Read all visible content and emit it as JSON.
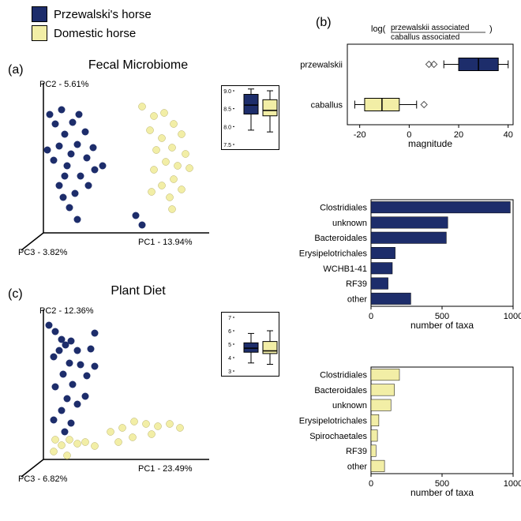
{
  "colors": {
    "przewalski": "#1d2d6b",
    "domestic": "#f2eea6",
    "stroke": "#000000",
    "bg": "#ffffff"
  },
  "legend": {
    "items": [
      {
        "label": "Przewalski's horse",
        "color": "#1d2d6b"
      },
      {
        "label": "Domestic horse",
        "color": "#f2eea6"
      }
    ]
  },
  "panels": {
    "a_label": "(a)",
    "b_label": "(b)",
    "c_label": "(c)"
  },
  "scatter_a": {
    "title": "Fecal Microbiome",
    "pc1": "PC1 - 13.94%",
    "pc2": "PC2 - 5.61%",
    "pc3": "PC3 - 3.82%",
    "blue_points": [
      [
        43,
        50
      ],
      [
        50,
        62
      ],
      [
        58,
        44
      ],
      [
        62,
        75
      ],
      [
        55,
        90
      ],
      [
        48,
        108
      ],
      [
        40,
        95
      ],
      [
        65,
        115
      ],
      [
        72,
        60
      ],
      [
        80,
        50
      ],
      [
        88,
        72
      ],
      [
        78,
        88
      ],
      [
        70,
        100
      ],
      [
        62,
        128
      ],
      [
        55,
        140
      ],
      [
        90,
        105
      ],
      [
        98,
        92
      ],
      [
        82,
        128
      ],
      [
        75,
        150
      ],
      [
        68,
        168
      ],
      [
        60,
        155
      ],
      [
        92,
        140
      ],
      [
        100,
        120
      ],
      [
        110,
        115
      ],
      [
        78,
        183
      ],
      [
        152,
        178
      ],
      [
        160,
        190
      ]
    ],
    "yellow_points": [
      [
        160,
        40
      ],
      [
        175,
        52
      ],
      [
        188,
        48
      ],
      [
        200,
        62
      ],
      [
        170,
        70
      ],
      [
        185,
        80
      ],
      [
        210,
        75
      ],
      [
        198,
        92
      ],
      [
        178,
        95
      ],
      [
        215,
        100
      ],
      [
        190,
        110
      ],
      [
        205,
        115
      ],
      [
        175,
        120
      ],
      [
        220,
        118
      ],
      [
        200,
        132
      ],
      [
        185,
        140
      ],
      [
        172,
        148
      ],
      [
        210,
        145
      ],
      [
        195,
        155
      ],
      [
        198,
        170
      ]
    ]
  },
  "scatter_c": {
    "title": "Plant Diet",
    "pc1": "PC1 - 23.49%",
    "pc2": "PC2 - 12.36%",
    "pc3": "PC3 - 6.82%",
    "blue_points": [
      [
        42,
        30
      ],
      [
        50,
        38
      ],
      [
        58,
        48
      ],
      [
        63,
        55
      ],
      [
        55,
        62
      ],
      [
        48,
        70
      ],
      [
        70,
        50
      ],
      [
        78,
        62
      ],
      [
        68,
        78
      ],
      [
        60,
        92
      ],
      [
        82,
        80
      ],
      [
        50,
        108
      ],
      [
        72,
        105
      ],
      [
        65,
        123
      ],
      [
        90,
        94
      ],
      [
        58,
        138
      ],
      [
        78,
        130
      ],
      [
        100,
        82
      ],
      [
        70,
        154
      ],
      [
        48,
        150
      ],
      [
        88,
        120
      ],
      [
        62,
        165
      ],
      [
        95,
        60
      ],
      [
        100,
        40
      ]
    ],
    "yellow_points": [
      [
        50,
        175
      ],
      [
        58,
        182
      ],
      [
        68,
        175
      ],
      [
        78,
        180
      ],
      [
        88,
        178
      ],
      [
        65,
        195
      ],
      [
        48,
        190
      ],
      [
        100,
        183
      ],
      [
        120,
        165
      ],
      [
        135,
        160
      ],
      [
        150,
        152
      ],
      [
        165,
        155
      ],
      [
        180,
        158
      ],
      [
        195,
        155
      ],
      [
        208,
        160
      ],
      [
        172,
        168
      ],
      [
        148,
        172
      ],
      [
        130,
        178
      ]
    ]
  },
  "inset_a": {
    "y_ticks": [
      "7.5",
      "8.0",
      "8.5",
      "9.0"
    ],
    "box1": {
      "q1": 8.35,
      "med": 8.6,
      "q3": 8.9,
      "lo": 7.9,
      "hi": 9.05,
      "color": "#1d2d6b"
    },
    "box2": {
      "q1": 8.3,
      "med": 8.45,
      "q3": 8.75,
      "lo": 7.85,
      "hi": 9.0,
      "color": "#f2eea6"
    },
    "ymin": 7.5,
    "ymax": 9.0
  },
  "inset_c": {
    "y_ticks": [
      "3",
      "4",
      "5",
      "6",
      "7"
    ],
    "box1": {
      "q1": 4.4,
      "med": 4.7,
      "q3": 5.1,
      "lo": 3.6,
      "hi": 5.8,
      "color": "#1d2d6b"
    },
    "box2": {
      "q1": 4.3,
      "med": 4.5,
      "q3": 5.2,
      "lo": 3.5,
      "hi": 6.0,
      "color": "#f2eea6"
    },
    "ymin": 3,
    "ymax": 7
  },
  "boxplot_b": {
    "title_top": "log(",
    "title_frac_top": "przewalskii associated",
    "title_frac_bot": "caballus associated",
    "title_end": ")",
    "cats": [
      {
        "label": "przewalskii",
        "q1": 20,
        "med": 28,
        "q3": 36,
        "lo": 14,
        "hi": 40,
        "outliers": [
          8,
          10
        ],
        "color": "#1d2d6b"
      },
      {
        "label": "caballus",
        "q1": -18,
        "med": -11,
        "q3": -4,
        "lo": -22,
        "hi": 3,
        "outliers": [
          6
        ],
        "color": "#f2eea6"
      }
    ],
    "xlabel": "magnitude",
    "xmin": -25,
    "xmax": 42,
    "xticks": [
      -20,
      0,
      20,
      40
    ]
  },
  "bars_blue": {
    "xlabel": "number of taxa",
    "xticks": [
      0,
      500,
      1000
    ],
    "xmax": 1000,
    "items": [
      {
        "label": "Clostridiales",
        "value": 980
      },
      {
        "label": "unknown",
        "value": 540
      },
      {
        "label": "Bacteroidales",
        "value": 530
      },
      {
        "label": "Erysipelotrichales",
        "value": 170
      },
      {
        "label": "WCHB1-41",
        "value": 150
      },
      {
        "label": "RF39",
        "value": 120
      },
      {
        "label": "other",
        "value": 280
      }
    ],
    "color": "#1d2d6b"
  },
  "bars_yellow": {
    "xlabel": "number of taxa",
    "xticks": [
      0,
      500,
      1000
    ],
    "xmax": 1000,
    "items": [
      {
        "label": "Clostridiales",
        "value": 200
      },
      {
        "label": "Bacteroidales",
        "value": 165
      },
      {
        "label": "unknown",
        "value": 140
      },
      {
        "label": "Erysipelotrichales",
        "value": 55
      },
      {
        "label": "Spirochaetales",
        "value": 45
      },
      {
        "label": "RF39",
        "value": 35
      },
      {
        "label": "other",
        "value": 95
      }
    ],
    "color": "#f2eea6"
  },
  "font": {
    "axis": 11,
    "title": 16
  }
}
